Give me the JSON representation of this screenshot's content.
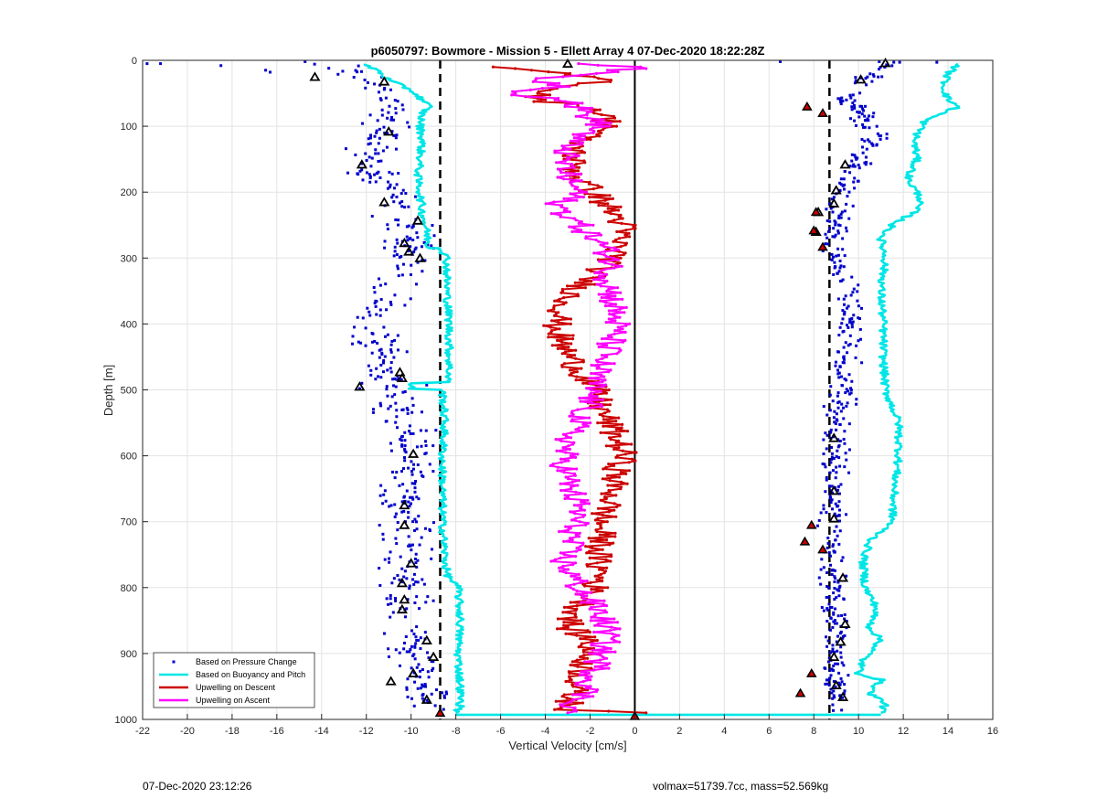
{
  "chart_data": {
    "type": "scatter",
    "title": "p6050797: Bowmore - Mission 5 - Ellett Array 4 07-Dec-2020 18:22:28Z",
    "xlabel": "Vertical Velocity [cm/s]",
    "ylabel": "Depth [m]",
    "xlim": [
      -22,
      16
    ],
    "ylim": [
      1000,
      0
    ],
    "y_reversed": true,
    "grid": true,
    "x_ticks": [
      -22,
      -20,
      -18,
      -16,
      -14,
      -12,
      -10,
      -8,
      -6,
      -4,
      -2,
      0,
      2,
      4,
      6,
      8,
      10,
      12,
      14,
      16
    ],
    "y_ticks": [
      0,
      100,
      200,
      300,
      400,
      500,
      600,
      700,
      800,
      900,
      1000
    ],
    "legend_position": "bottom-left",
    "series": [
      {
        "name": "Based on Pressure Change",
        "color": "#0000cc",
        "marker": "dot",
        "groups": [
          {
            "depth": [
              0,
              10,
              20,
              30,
              40,
              60,
              80,
              100,
              120,
              150,
              180,
              200,
              230,
              260,
              300,
              350,
              400,
              450,
              500,
              550,
              600,
              650,
              700,
              750,
              800,
              850,
              900,
              950,
              990
            ],
            "center": [
              -14.5,
              -13.0,
              -12.2,
              -11.8,
              -11.5,
              -11.0,
              -10.8,
              -11.0,
              -11.5,
              -12.0,
              -11.5,
              -11.0,
              -10.5,
              -10.2,
              -10.0,
              -11.0,
              -11.8,
              -11.2,
              -10.5,
              -10.2,
              -10.0,
              -10.3,
              -10.2,
              -10.0,
              -10.3,
              -10.2,
              -9.8,
              -9.5,
              -9.3
            ],
            "spread": 0.9
          },
          {
            "depth": [
              0,
              10,
              20,
              30,
              40,
              60,
              80,
              100,
              120,
              150,
              180,
              200,
              230,
              260,
              300,
              350,
              400,
              450,
              500,
              550,
              600,
              650,
              700,
              750,
              800,
              850,
              900,
              950,
              990
            ],
            "center": [
              11.5,
              11.2,
              10.8,
              10.2,
              9.8,
              9.5,
              10.0,
              10.5,
              10.8,
              10.0,
              9.6,
              9.3,
              9.0,
              8.8,
              9.0,
              9.5,
              9.6,
              9.4,
              9.2,
              9.0,
              8.9,
              8.9,
              8.8,
              8.7,
              8.8,
              9.0,
              9.0,
              8.9,
              9.2
            ],
            "spread": 0.5
          }
        ],
        "outliers": [
          {
            "x": -21.8,
            "y": 5
          },
          {
            "x": -21.2,
            "y": 5
          },
          {
            "x": -18.5,
            "y": 8
          },
          {
            "x": -16.5,
            "y": 15
          },
          {
            "x": -16.3,
            "y": 18
          },
          {
            "x": -12.3,
            "y": 498
          },
          {
            "x": -12.2,
            "y": 490
          },
          {
            "x": 6.5,
            "y": 2
          },
          {
            "x": 13.5,
            "y": 3
          }
        ]
      },
      {
        "name": "Based on Buoyancy and Pitch",
        "color": "#00e6e6",
        "marker": "line",
        "branches": [
          {
            "points": [
              [
                -12.2,
                5
              ],
              [
                -11.5,
                15
              ],
              [
                -11.0,
                30
              ],
              [
                -10.0,
                45
              ],
              [
                -9.5,
                60
              ],
              [
                -9.2,
                70
              ],
              [
                -9.5,
                80
              ],
              [
                -9.6,
                100
              ],
              [
                -9.5,
                120
              ],
              [
                -9.6,
                150
              ],
              [
                -9.7,
                180
              ],
              [
                -9.6,
                200
              ],
              [
                -9.5,
                230
              ],
              [
                -9.3,
                260
              ],
              [
                -9.2,
                285
              ],
              [
                -8.6,
                285
              ],
              [
                -8.6,
                290
              ],
              [
                -8.4,
                300
              ],
              [
                -8.4,
                350
              ],
              [
                -8.3,
                400
              ],
              [
                -8.3,
                450
              ],
              [
                -8.3,
                488
              ],
              [
                -10.0,
                490
              ],
              [
                -10.0,
                498
              ],
              [
                -8.6,
                500
              ],
              [
                -8.5,
                550
              ],
              [
                -8.6,
                600
              ],
              [
                -8.6,
                650
              ],
              [
                -8.6,
                700
              ],
              [
                -8.5,
                750
              ],
              [
                -8.4,
                780
              ],
              [
                -7.9,
                800
              ],
              [
                -7.8,
                850
              ],
              [
                -7.9,
                900
              ],
              [
                -7.8,
                950
              ],
              [
                -7.8,
                980
              ],
              [
                -8.0,
                990
              ]
            ]
          },
          {
            "points": [
              [
                14.5,
                5
              ],
              [
                14.0,
                20
              ],
              [
                13.8,
                40
              ],
              [
                14.0,
                60
              ],
              [
                14.5,
                70
              ],
              [
                13.0,
                90
              ],
              [
                12.5,
                120
              ],
              [
                12.6,
                150
              ],
              [
                12.2,
                180
              ],
              [
                12.8,
                210
              ],
              [
                12.5,
                230
              ],
              [
                11.5,
                250
              ],
              [
                11.0,
                270
              ],
              [
                11.2,
                300
              ],
              [
                11.0,
                350
              ],
              [
                11.1,
                400
              ],
              [
                11.1,
                450
              ],
              [
                11.2,
                500
              ],
              [
                11.8,
                550
              ],
              [
                11.8,
                600
              ],
              [
                11.6,
                650
              ],
              [
                11.5,
                700
              ],
              [
                10.5,
                730
              ],
              [
                10.2,
                760
              ],
              [
                10.3,
                800
              ],
              [
                10.8,
                830
              ],
              [
                10.5,
                860
              ],
              [
                11.0,
                880
              ],
              [
                10.2,
                910
              ],
              [
                10.0,
                930
              ],
              [
                11.0,
                940
              ],
              [
                10.5,
                960
              ],
              [
                11.2,
                975
              ],
              [
                11.0,
                990
              ]
            ]
          }
        ],
        "bottom_connector": [
          [
            -8.0,
            993
          ],
          [
            11.0,
            993
          ]
        ]
      },
      {
        "name": "Upwelling on Descent",
        "color": "#cc0000",
        "marker": "line",
        "points": [
          [
            -6.2,
            10
          ],
          [
            -3.5,
            20
          ],
          [
            -1.0,
            30
          ],
          [
            -3.8,
            45
          ],
          [
            -4.5,
            60
          ],
          [
            -2.0,
            70
          ],
          [
            -1.5,
            80
          ],
          [
            -1.0,
            100
          ],
          [
            -2.5,
            120
          ],
          [
            -2.8,
            150
          ],
          [
            -2.5,
            180
          ],
          [
            -1.8,
            200
          ],
          [
            -1.0,
            230
          ],
          [
            -0.5,
            250
          ],
          [
            -0.8,
            280
          ],
          [
            -0.9,
            300
          ],
          [
            -2.0,
            330
          ],
          [
            -3.0,
            360
          ],
          [
            -3.5,
            400
          ],
          [
            -3.3,
            430
          ],
          [
            -2.5,
            470
          ],
          [
            -1.8,
            500
          ],
          [
            -1.5,
            530
          ],
          [
            -1.0,
            560
          ],
          [
            -0.5,
            600
          ],
          [
            -0.9,
            630
          ],
          [
            -1.0,
            660
          ],
          [
            -1.5,
            700
          ],
          [
            -1.5,
            730
          ],
          [
            -1.7,
            760
          ],
          [
            -1.5,
            780
          ],
          [
            -1.8,
            800
          ],
          [
            -2.5,
            830
          ],
          [
            -3.0,
            860
          ],
          [
            -2.0,
            880
          ],
          [
            -2.2,
            910
          ],
          [
            -2.5,
            940
          ],
          [
            -2.8,
            960
          ],
          [
            -3.0,
            985
          ],
          [
            0.5,
            990
          ]
        ]
      },
      {
        "name": "Upwelling on Ascent",
        "color": "#ff00ff",
        "marker": "line",
        "points": [
          [
            -2.5,
            5
          ],
          [
            0.5,
            10
          ],
          [
            -2.0,
            20
          ],
          [
            -4.5,
            30
          ],
          [
            -3.0,
            40
          ],
          [
            -5.5,
            50
          ],
          [
            -3.0,
            60
          ],
          [
            -2.2,
            80
          ],
          [
            -1.5,
            100
          ],
          [
            -2.8,
            120
          ],
          [
            -3.2,
            150
          ],
          [
            -3.0,
            180
          ],
          [
            -2.5,
            200
          ],
          [
            -3.5,
            220
          ],
          [
            -2.5,
            250
          ],
          [
            -1.5,
            280
          ],
          [
            -1.0,
            300
          ],
          [
            -1.2,
            330
          ],
          [
            -1.0,
            360
          ],
          [
            -0.8,
            400
          ],
          [
            -1.2,
            440
          ],
          [
            -1.8,
            480
          ],
          [
            -2.0,
            520
          ],
          [
            -2.8,
            560
          ],
          [
            -3.2,
            600
          ],
          [
            -3.0,
            640
          ],
          [
            -2.5,
            680
          ],
          [
            -2.8,
            720
          ],
          [
            -3.2,
            760
          ],
          [
            -2.5,
            800
          ],
          [
            -1.5,
            840
          ],
          [
            -1.2,
            870
          ],
          [
            -1.5,
            900
          ],
          [
            -1.8,
            930
          ],
          [
            -2.2,
            960
          ],
          [
            -2.8,
            980
          ],
          [
            -3.0,
            990
          ]
        ]
      },
      {
        "name": "Dive markers",
        "color": "#000000",
        "marker": "triangle",
        "points": [
          [
            -14.3,
            25
          ],
          [
            -11.2,
            32
          ],
          [
            -11.0,
            108
          ],
          [
            -12.2,
            158
          ],
          [
            -11.2,
            215
          ],
          [
            -9.7,
            243
          ],
          [
            -10.3,
            277
          ],
          [
            -10.1,
            290
          ],
          [
            -9.6,
            300
          ],
          [
            -10.4,
            482
          ],
          [
            -10.5,
            473
          ],
          [
            -12.3,
            495
          ],
          [
            -9.9,
            597
          ],
          [
            -10.3,
            675
          ],
          [
            -10.3,
            705
          ],
          [
            -10.0,
            763
          ],
          [
            -10.4,
            793
          ],
          [
            -10.3,
            818
          ],
          [
            -10.4,
            833
          ],
          [
            -9.3,
            880
          ],
          [
            -9.0,
            905
          ],
          [
            -9.9,
            930
          ],
          [
            -10.9,
            942
          ],
          [
            -9.3,
            970
          ],
          [
            -3.0,
            5
          ],
          [
            11.2,
            4
          ],
          [
            10.1,
            29
          ],
          [
            9.4,
            158
          ],
          [
            9.0,
            197
          ],
          [
            8.9,
            217
          ],
          [
            8.2,
            230
          ],
          [
            8.1,
            260
          ],
          [
            8.9,
            573
          ],
          [
            8.9,
            653
          ],
          [
            8.9,
            695
          ],
          [
            9.3,
            785
          ],
          [
            9.4,
            855
          ],
          [
            9.2,
            882
          ],
          [
            8.9,
            905
          ],
          [
            9.0,
            948
          ],
          [
            9.3,
            966
          ]
        ]
      },
      {
        "name": "Red markers",
        "color": "#cc0000",
        "marker": "triangle-filled",
        "points": [
          [
            7.7,
            70
          ],
          [
            8.4,
            80
          ],
          [
            8.1,
            230
          ],
          [
            8.0,
            258
          ],
          [
            8.4,
            283
          ],
          [
            7.9,
            705
          ],
          [
            7.6,
            730
          ],
          [
            8.4,
            742
          ],
          [
            7.9,
            930
          ],
          [
            7.4,
            960
          ],
          [
            -8.7,
            990
          ],
          [
            0.0,
            995
          ]
        ]
      }
    ],
    "reference_lines": [
      {
        "x": -8.7,
        "style": "dashed",
        "color": "#000000"
      },
      {
        "x": 8.7,
        "style": "dashed",
        "color": "#000000"
      },
      {
        "x": 0,
        "style": "solid",
        "color": "#000000"
      }
    ]
  },
  "legend": [
    {
      "label": "Based on Pressure Change",
      "color": "#0000cc",
      "kind": "dot"
    },
    {
      "label": "Based on Buoyancy and Pitch",
      "color": "#00e6e6",
      "kind": "line"
    },
    {
      "label": "Upwelling on Descent",
      "color": "#cc0000",
      "kind": "line"
    },
    {
      "label": "Upwelling on Ascent",
      "color": "#ff00ff",
      "kind": "line"
    }
  ],
  "footer": {
    "timestamp": "07-Dec-2020 23:12:26",
    "info": "volmax=51739.7cc, mass=52.569kg"
  }
}
